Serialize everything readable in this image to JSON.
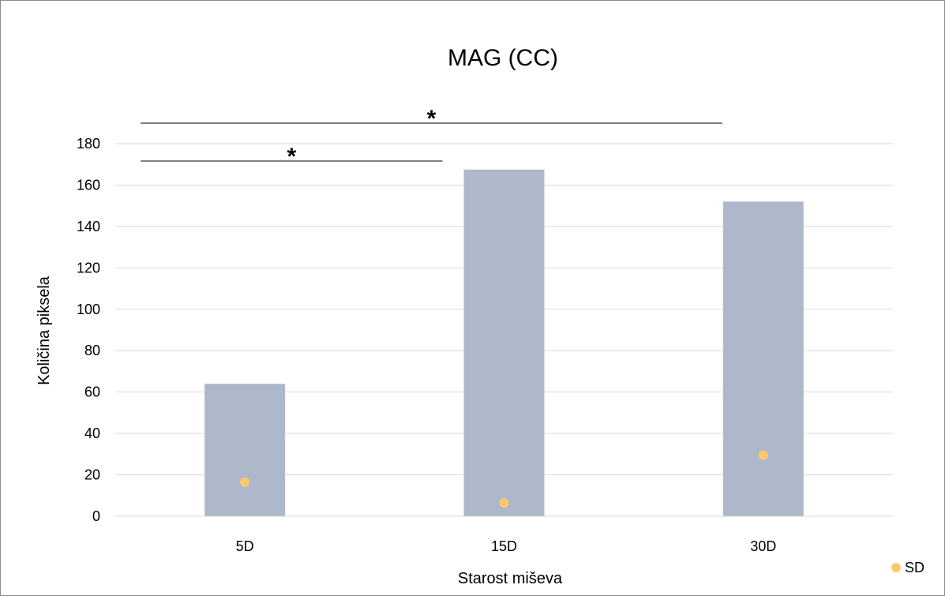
{
  "chart_data": {
    "type": "bar",
    "title": "MAG (CC)",
    "xlabel": "Starost miševa",
    "ylabel": "Količina piksela",
    "categories": [
      "5D",
      "15D",
      "30D"
    ],
    "series": [
      {
        "name": "",
        "kind": "bar",
        "color": "#adb9ca",
        "values": [
          64,
          167.5,
          152
        ]
      },
      {
        "name": "SD",
        "kind": "point",
        "color": "#ffc96b",
        "values": [
          16.5,
          6.5,
          29.5
        ]
      }
    ],
    "ylim": [
      0,
      180
    ],
    "yticks": [
      0,
      20,
      40,
      60,
      80,
      100,
      120,
      140,
      160,
      180
    ],
    "grid": true,
    "legend_position": "bottom-right",
    "significance": [
      {
        "from": "5D",
        "to": "15D",
        "label": "*"
      },
      {
        "from": "5D",
        "to": "30D",
        "label": "*"
      }
    ]
  }
}
